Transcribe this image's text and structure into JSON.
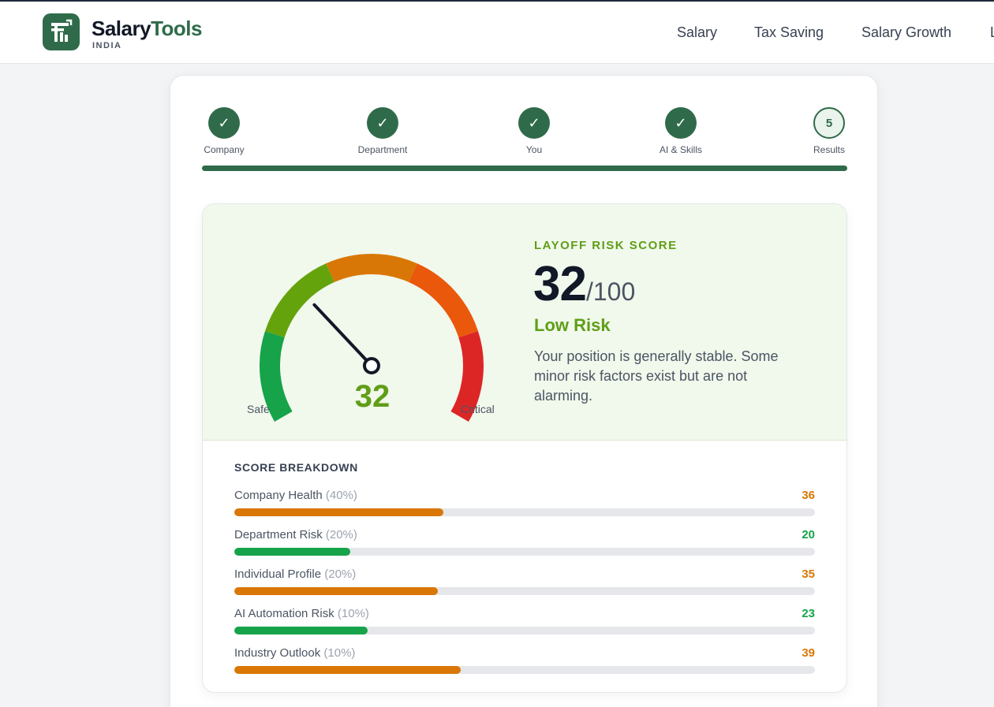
{
  "header": {
    "brand_name_main": "Salary",
    "brand_name_accent": "Tools",
    "brand_sub": "INDIA",
    "nav": [
      "Salary",
      "Tax Saving",
      "Salary Growth",
      "L"
    ]
  },
  "steps": [
    {
      "label": "Company",
      "state": "done"
    },
    {
      "label": "Department",
      "state": "done"
    },
    {
      "label": "You",
      "state": "done"
    },
    {
      "label": "AI & Skills",
      "state": "done"
    },
    {
      "label": "Results",
      "number": "5",
      "state": "current"
    }
  ],
  "check_glyph": "✓",
  "gauge": {
    "value": 32,
    "max": 100,
    "value_text": "32",
    "left_label": "Safe",
    "right_label": "Critical",
    "segment_colors": [
      "#16a34a",
      "#65a30d",
      "#d97706",
      "#ea580c",
      "#dc2626"
    ]
  },
  "risk": {
    "title": "LAYOFF RISK SCORE",
    "score": "32",
    "out_of": "/100",
    "level": "Low Risk",
    "description": "Your position is generally stable. Some minor risk factors exist but are not alarming."
  },
  "breakdown": {
    "title": "SCORE BREAKDOWN",
    "items": [
      {
        "label": "Company Health",
        "weight": "(40%)",
        "score": "36",
        "value": 36,
        "color": "#d97706"
      },
      {
        "label": "Department Risk",
        "weight": "(20%)",
        "score": "20",
        "value": 20,
        "color": "#16a34a"
      },
      {
        "label": "Individual Profile",
        "weight": "(20%)",
        "score": "35",
        "value": 35,
        "color": "#d97706"
      },
      {
        "label": "AI Automation Risk",
        "weight": "(10%)",
        "score": "23",
        "value": 23,
        "color": "#16a34a"
      },
      {
        "label": "Industry Outlook",
        "weight": "(10%)",
        "score": "39",
        "value": 39,
        "color": "#d97706"
      }
    ]
  }
}
